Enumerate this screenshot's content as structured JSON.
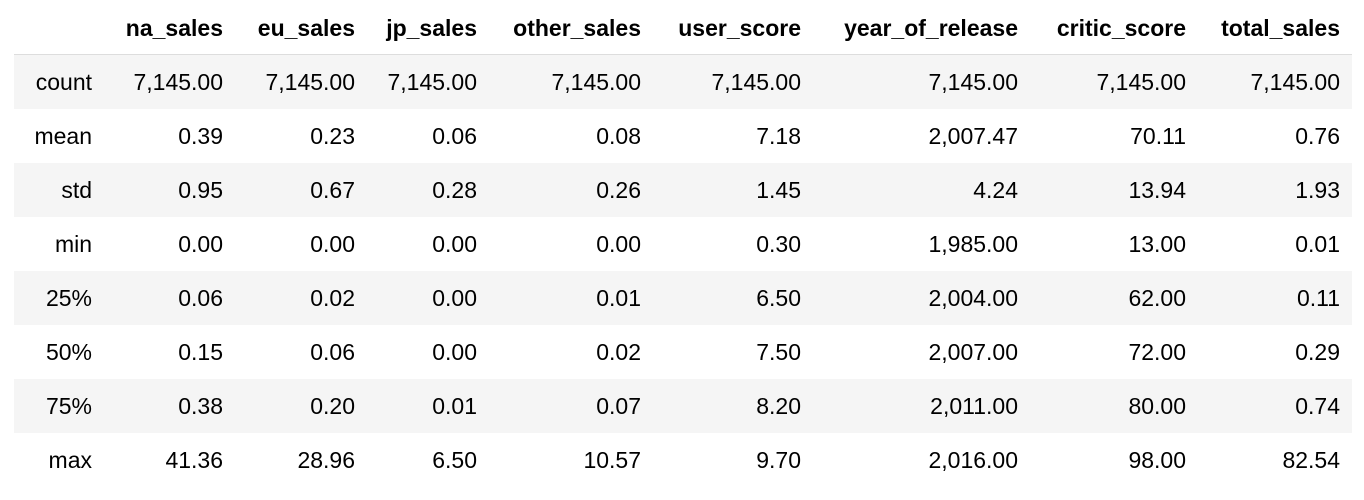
{
  "table": {
    "columns": [
      "",
      "na_sales",
      "eu_sales",
      "jp_sales",
      "other_sales",
      "user_score",
      "year_of_release",
      "critic_score",
      "total_sales"
    ],
    "rows": [
      {
        "label": "count",
        "values": [
          "7,145.00",
          "7,145.00",
          "7,145.00",
          "7,145.00",
          "7,145.00",
          "7,145.00",
          "7,145.00",
          "7,145.00"
        ]
      },
      {
        "label": "mean",
        "values": [
          "0.39",
          "0.23",
          "0.06",
          "0.08",
          "7.18",
          "2,007.47",
          "70.11",
          "0.76"
        ]
      },
      {
        "label": "std",
        "values": [
          "0.95",
          "0.67",
          "0.28",
          "0.26",
          "1.45",
          "4.24",
          "13.94",
          "1.93"
        ]
      },
      {
        "label": "min",
        "values": [
          "0.00",
          "0.00",
          "0.00",
          "0.00",
          "0.30",
          "1,985.00",
          "13.00",
          "0.01"
        ]
      },
      {
        "label": "25%",
        "values": [
          "0.06",
          "0.02",
          "0.00",
          "0.01",
          "6.50",
          "2,004.00",
          "62.00",
          "0.11"
        ]
      },
      {
        "label": "50%",
        "values": [
          "0.15",
          "0.06",
          "0.00",
          "0.02",
          "7.50",
          "2,007.00",
          "72.00",
          "0.29"
        ]
      },
      {
        "label": "75%",
        "values": [
          "0.38",
          "0.20",
          "0.01",
          "0.07",
          "8.20",
          "2,011.00",
          "80.00",
          "0.74"
        ]
      },
      {
        "label": "max",
        "values": [
          "41.36",
          "28.96",
          "6.50",
          "10.57",
          "9.70",
          "2,016.00",
          "98.00",
          "82.54"
        ]
      }
    ]
  },
  "colors": {
    "stripe": "#f5f5f5",
    "background": "#ffffff",
    "text": "#000000"
  }
}
